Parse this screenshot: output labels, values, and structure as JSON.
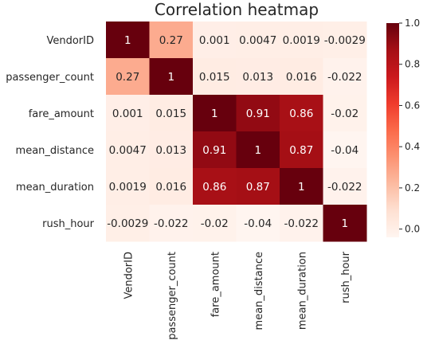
{
  "chart_data": {
    "type": "heatmap",
    "title": "Correlation heatmap",
    "row_labels": [
      "VendorID",
      "passenger_count",
      "fare_amount",
      "mean_distance",
      "mean_duration",
      "rush_hour"
    ],
    "col_labels": [
      "VendorID",
      "passenger_count",
      "fare_amount",
      "mean_distance",
      "mean_duration",
      "rush_hour"
    ],
    "values": [
      [
        1,
        0.27,
        0.001,
        0.0047,
        0.0019,
        -0.0029
      ],
      [
        0.27,
        1,
        0.015,
        0.013,
        0.016,
        -0.022
      ],
      [
        0.001,
        0.015,
        1,
        0.91,
        0.86,
        -0.02
      ],
      [
        0.0047,
        0.013,
        0.91,
        1,
        0.87,
        -0.04
      ],
      [
        0.0019,
        0.016,
        0.86,
        0.87,
        1,
        -0.022
      ],
      [
        -0.0029,
        -0.022,
        -0.02,
        -0.04,
        -0.022,
        1
      ]
    ],
    "cell_labels": [
      [
        "1",
        "0.27",
        "0.001",
        "0.0047",
        "0.0019",
        "-0.0029"
      ],
      [
        "0.27",
        "1",
        "0.015",
        "0.013",
        "0.016",
        "-0.022"
      ],
      [
        "0.001",
        "0.015",
        "1",
        "0.91",
        "0.86",
        "-0.02"
      ],
      [
        "0.0047",
        "0.013",
        "0.91",
        "1",
        "0.87",
        "-0.04"
      ],
      [
        "0.0019",
        "0.016",
        "0.86",
        "0.87",
        "1",
        "-0.022"
      ],
      [
        "-0.0029",
        "-0.022",
        "-0.02",
        "-0.04",
        "-0.022",
        "1"
      ]
    ],
    "colormap": "Reds",
    "vmin": -0.04,
    "vmax": 1,
    "colorbar": {
      "ticks": [
        0.0,
        0.2,
        0.4,
        0.6,
        0.8,
        1.0
      ],
      "tick_labels": [
        "0.0",
        "0.2",
        "0.4",
        "0.6",
        "0.8",
        "1.0"
      ],
      "placement": "right"
    },
    "grid": false
  }
}
